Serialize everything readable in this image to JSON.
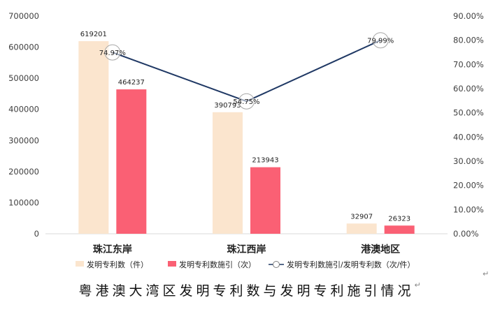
{
  "chart_data": {
    "type": "bar",
    "categories": [
      "珠江东岸",
      "珠江西岸",
      "港澳地区"
    ],
    "series": [
      {
        "name": "发明专利数（件）",
        "kind": "bar",
        "axis": "left",
        "color": "#FBE5CE",
        "values": [
          619201,
          390793,
          32907
        ]
      },
      {
        "name": "发明专利数施引（次）",
        "kind": "bar",
        "axis": "left",
        "color": "#FA6074",
        "values": [
          464237,
          213943,
          26323
        ]
      },
      {
        "name": "发明专利数施引/发明专利数（次/件）",
        "kind": "line",
        "axis": "right",
        "color": "#1F3864",
        "values": [
          74.97,
          54.75,
          79.99
        ]
      }
    ],
    "value_labels": [
      [
        "619201",
        "390793",
        "32907"
      ],
      [
        "464237",
        "213943",
        "26323"
      ],
      [
        "74.97%",
        "54.75%",
        "79.99%"
      ]
    ],
    "y_left": {
      "ylim": [
        0,
        700000
      ],
      "ticks": [
        "0",
        "100000",
        "200000",
        "300000",
        "400000",
        "500000",
        "600000",
        "700000"
      ]
    },
    "y_right": {
      "ylim": [
        0,
        90
      ],
      "ticks": [
        "0.00%",
        "10.00%",
        "20.00%",
        "30.00%",
        "40.00%",
        "50.00%",
        "60.00%",
        "70.00%",
        "80.00%",
        "90.00%"
      ]
    },
    "grid": false,
    "legend_position": "bottom"
  },
  "caption": "粤港澳大湾区发明专利数与发明专利施引情况",
  "caption_mark": "↵",
  "para_mark": "↵"
}
